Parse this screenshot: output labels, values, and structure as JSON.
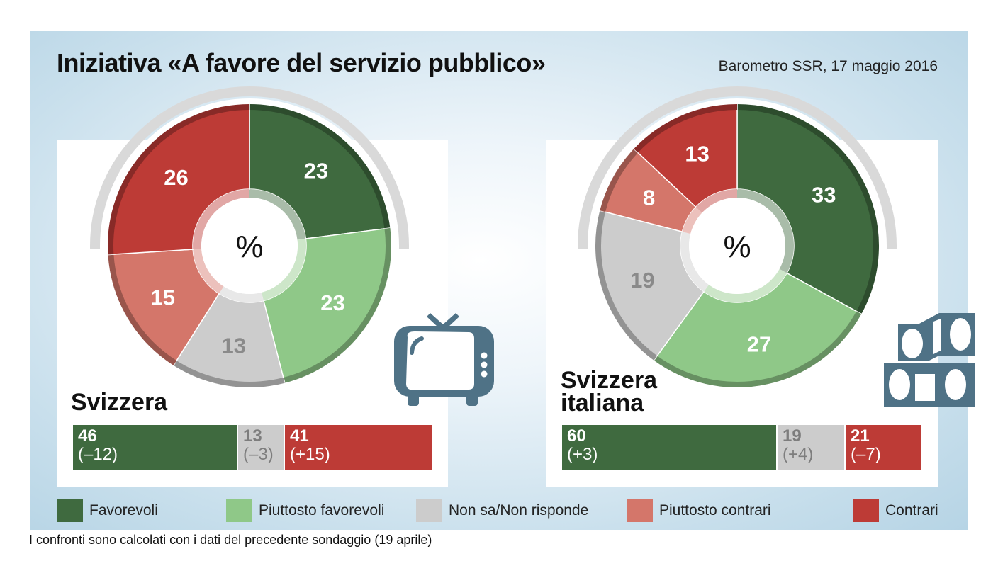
{
  "title": "Iniziativa «A favore del servizio pubblico»",
  "subtitle": "Barometro SSR, 17 maggio 2016",
  "center_symbol": "%",
  "colors": {
    "favorevoli": "#3f6a3f",
    "piuttosto_favorevoli": "#8fc888",
    "non_sa": "#cccccc",
    "piuttosto_contrari": "#d4766a",
    "contrari": "#bd3b36"
  },
  "legend": [
    {
      "label": "Favorevoli",
      "color": "#3f6a3f"
    },
    {
      "label": "Piuttosto favorevoli",
      "color": "#8fc888"
    },
    {
      "label": "Non sa/Non risponde",
      "color": "#cccccc"
    },
    {
      "label": "Piuttosto contrari",
      "color": "#d4766a"
    },
    {
      "label": "Contrari",
      "color": "#bd3b36"
    }
  ],
  "footnote": "I confronti sono calcolati con i dati del precedente sondaggio (19 aprile)",
  "icons": {
    "left": "tv-icon",
    "right": "film-reel-icon"
  },
  "chart_data": [
    {
      "type": "pie",
      "region": "Svizzera",
      "categories": [
        "Favorevoli",
        "Piuttosto favorevoli",
        "Non sa/Non risponde",
        "Piuttosto contrari",
        "Contrari"
      ],
      "values": [
        23,
        23,
        13,
        15,
        26
      ],
      "labels": [
        "23",
        "23",
        "13",
        "15",
        "26"
      ],
      "summary": [
        {
          "value": "46",
          "change": "(–12)",
          "share": 46,
          "color": "#3f6a3f"
        },
        {
          "value": "13",
          "change": "(–3)",
          "share": 13,
          "color": "#cccccc"
        },
        {
          "value": "41",
          "change": "(+15)",
          "share": 41,
          "color": "#bd3b36"
        }
      ]
    },
    {
      "type": "pie",
      "region": "Svizzera italiana",
      "region_lines": [
        "Svizzera",
        "italiana"
      ],
      "categories": [
        "Favorevoli",
        "Piuttosto favorevoli",
        "Non sa/Non risponde",
        "Piuttosto contrari",
        "Contrari"
      ],
      "values": [
        33,
        27,
        19,
        8,
        13
      ],
      "labels": [
        "33",
        "27",
        "19",
        "8",
        "13"
      ],
      "summary": [
        {
          "value": "60",
          "change": "(+3)",
          "share": 60,
          "color": "#3f6a3f"
        },
        {
          "value": "19",
          "change": "(+4)",
          "share": 19,
          "color": "#cccccc"
        },
        {
          "value": "21",
          "change": "(–7)",
          "share": 21,
          "color": "#bd3b36"
        }
      ]
    }
  ]
}
